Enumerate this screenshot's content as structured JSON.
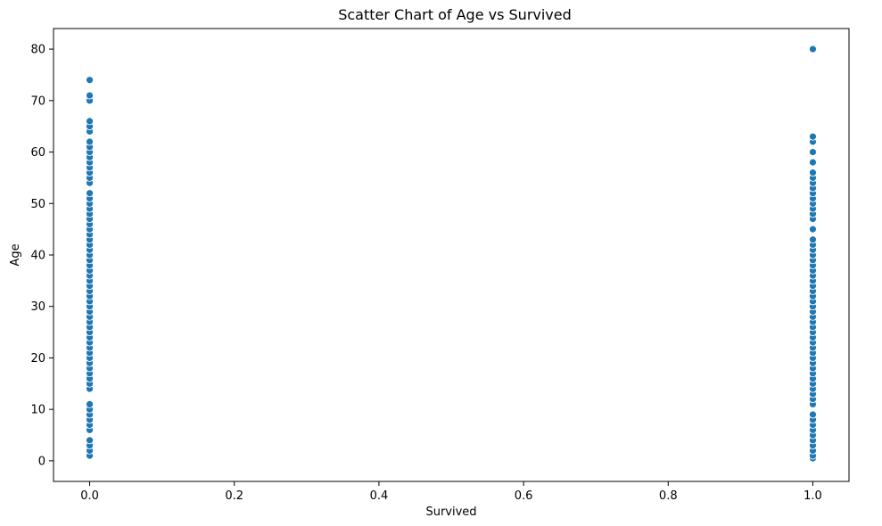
{
  "chart_data": {
    "type": "scatter",
    "title": "Scatter Chart of Age vs Survived",
    "xlabel": "Survived",
    "ylabel": "Age",
    "xlim": [
      -0.05,
      1.05
    ],
    "ylim": [
      -4,
      84
    ],
    "x_ticks": [
      0.0,
      0.2,
      0.4,
      0.6,
      0.8,
      1.0
    ],
    "x_tick_labels": [
      "0.0",
      "0.2",
      "0.4",
      "0.6",
      "0.8",
      "1.0"
    ],
    "y_ticks": [
      0,
      10,
      20,
      30,
      40,
      50,
      60,
      70,
      80
    ],
    "y_tick_labels": [
      "0",
      "10",
      "20",
      "30",
      "40",
      "50",
      "60",
      "70",
      "80"
    ],
    "grid": false,
    "color": "#1f77b4",
    "series": [
      {
        "x": 0,
        "y": [
          1,
          2,
          3,
          4,
          6,
          7,
          8,
          9,
          10,
          11,
          14,
          15,
          16,
          17,
          18,
          19,
          20,
          21,
          22,
          23,
          24,
          25,
          26,
          27,
          28,
          29,
          30,
          31,
          32,
          33,
          34,
          35,
          36,
          37,
          38,
          39,
          40,
          41,
          42,
          43,
          44,
          45,
          46,
          47,
          48,
          49,
          50,
          51,
          52,
          54,
          55,
          56,
          57,
          58,
          59,
          60,
          61,
          62,
          64,
          65,
          66,
          70,
          71,
          74
        ]
      },
      {
        "x": 1,
        "y": [
          0.5,
          1,
          2,
          3,
          4,
          5,
          6,
          7,
          8,
          9,
          11,
          12,
          13,
          14,
          15,
          16,
          17,
          18,
          19,
          20,
          21,
          22,
          23,
          24,
          25,
          26,
          27,
          28,
          29,
          30,
          31,
          32,
          33,
          34,
          35,
          36,
          37,
          38,
          39,
          40,
          41,
          42,
          43,
          45,
          47,
          48,
          49,
          50,
          51,
          52,
          53,
          54,
          55,
          56,
          58,
          60,
          62,
          63,
          80
        ]
      }
    ]
  }
}
